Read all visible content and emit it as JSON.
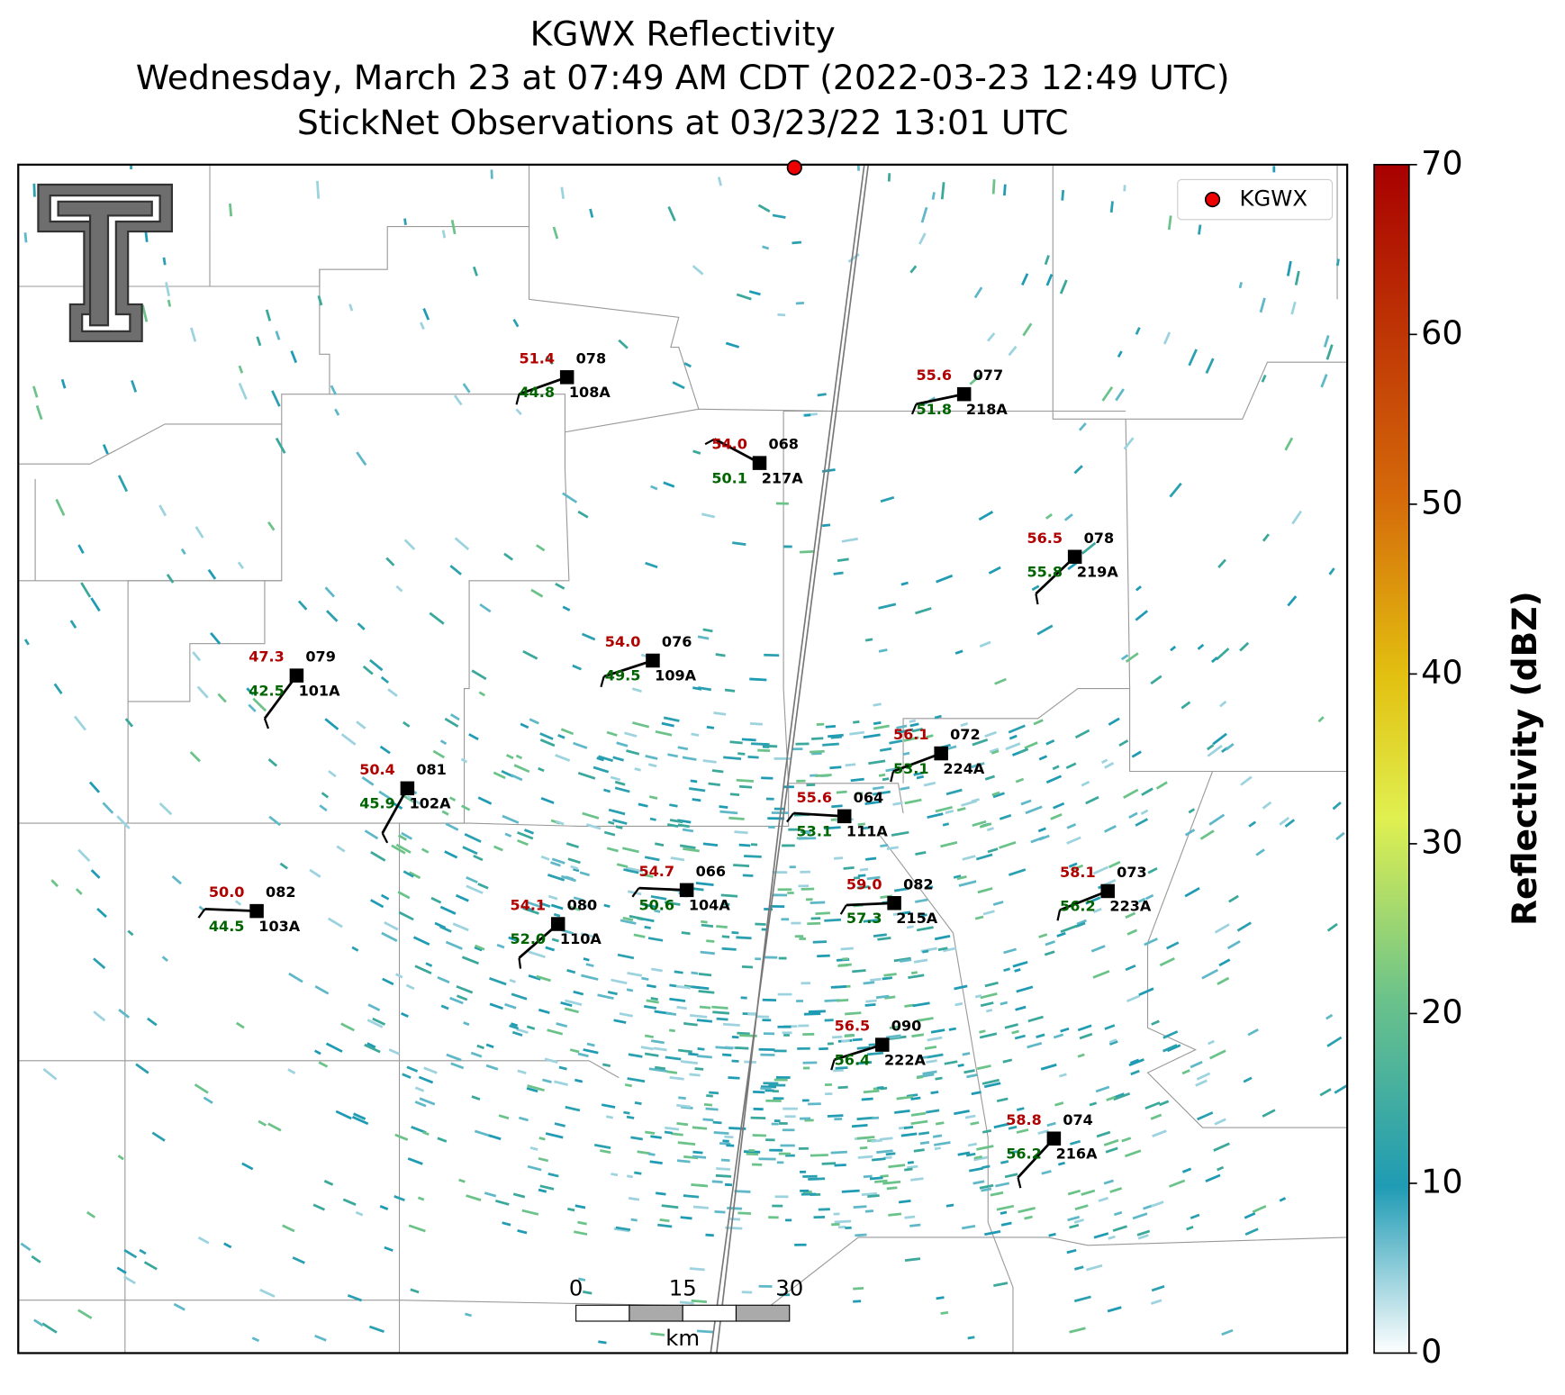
{
  "header": {
    "title": "KGWX Reflectivity",
    "subtitle": "Wednesday, March 23 at 07:49 AM CDT (2022-03-23 12:49 UTC)",
    "subtitle2": "StickNet Observations at 03/23/22 13:01 UTC"
  },
  "legend": {
    "label": "KGWX"
  },
  "colorbar": {
    "label": "Reflectivity (dBZ)",
    "lim": [
      0,
      70
    ],
    "ticks": [
      0,
      10,
      20,
      30,
      40,
      50,
      60,
      70
    ]
  },
  "scale_bar": {
    "ticks": [
      0,
      15,
      30
    ],
    "unit": "km"
  },
  "stations": [
    {
      "id": "108A",
      "temperature": "51.4",
      "dewpoint": "44.8",
      "pressure": "078"
    },
    {
      "id": "217A",
      "temperature": "54.0",
      "dewpoint": "50.1",
      "pressure": "068"
    },
    {
      "id": "218A",
      "temperature": "55.6",
      "dewpoint": "51.8",
      "pressure": "077"
    },
    {
      "id": "219A",
      "temperature": "56.5",
      "dewpoint": "55.8",
      "pressure": "078"
    },
    {
      "id": "109A",
      "temperature": "54.0",
      "dewpoint": "49.5",
      "pressure": "076"
    },
    {
      "id": "101A",
      "temperature": "47.3",
      "dewpoint": "42.5",
      "pressure": "079"
    },
    {
      "id": "224A",
      "temperature": "56.1",
      "dewpoint": "53.1",
      "pressure": "072"
    },
    {
      "id": "102A",
      "temperature": "50.4",
      "dewpoint": "45.9",
      "pressure": "081"
    },
    {
      "id": "111A",
      "temperature": "55.6",
      "dewpoint": "53.1",
      "pressure": "064"
    },
    {
      "id": "104A",
      "temperature": "54.7",
      "dewpoint": "50.6",
      "pressure": "066"
    },
    {
      "id": "215A",
      "temperature": "59.0",
      "dewpoint": "57.3",
      "pressure": "082"
    },
    {
      "id": "223A",
      "temperature": "58.1",
      "dewpoint": "56.2",
      "pressure": "073"
    },
    {
      "id": "103A",
      "temperature": "50.0",
      "dewpoint": "44.5",
      "pressure": "082"
    },
    {
      "id": "110A",
      "temperature": "54.1",
      "dewpoint": "52.0",
      "pressure": "080"
    },
    {
      "id": "222A",
      "temperature": "56.5",
      "dewpoint": "56.4",
      "pressure": "090"
    },
    {
      "id": "216A",
      "temperature": "58.8",
      "dewpoint": "56.2",
      "pressure": "074"
    }
  ]
}
